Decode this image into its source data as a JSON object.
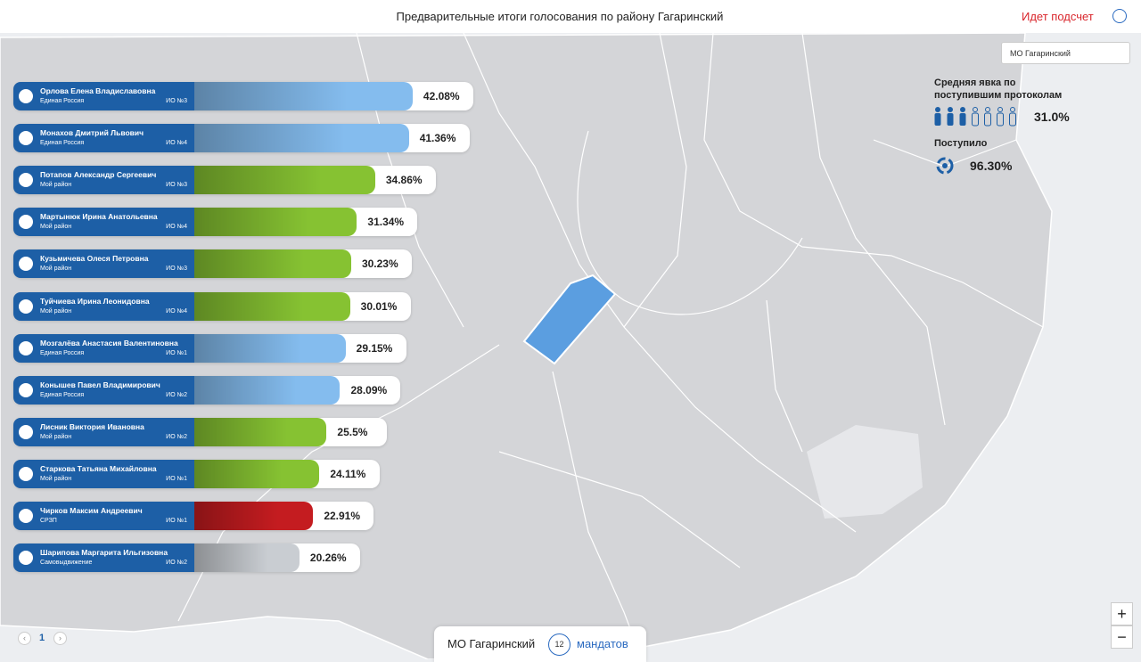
{
  "header": {
    "title": "Предварительные итоги голосования по району Гагаринский",
    "status": "Идет подсчет"
  },
  "candidates": [
    {
      "name": "Орлова Елена Владиславовна",
      "party": "Единая Россия",
      "district": "ИО №3",
      "percent": 42.08,
      "percent_label": "42.08%",
      "color": "#84bcee"
    },
    {
      "name": "Монахов Дмитрий Львович",
      "party": "Единая Россия",
      "district": "ИО №4",
      "percent": 41.36,
      "percent_label": "41.36%",
      "color": "#84bcee"
    },
    {
      "name": "Потапов Александр Сергеевич",
      "party": "Мой район",
      "district": "ИО №3",
      "percent": 34.86,
      "percent_label": "34.86%",
      "color": "#86c232"
    },
    {
      "name": "Мартынюк Ирина Анатольевна",
      "party": "Мой район",
      "district": "ИО №4",
      "percent": 31.34,
      "percent_label": "31.34%",
      "color": "#86c232"
    },
    {
      "name": "Кузьмичева Олеся Петровна",
      "party": "Мой район",
      "district": "ИО №3",
      "percent": 30.23,
      "percent_label": "30.23%",
      "color": "#86c232"
    },
    {
      "name": "Туйчиева Ирина Леонидовна",
      "party": "Мой район",
      "district": "ИО №4",
      "percent": 30.01,
      "percent_label": "30.01%",
      "color": "#86c232"
    },
    {
      "name": "Мозгалёва Анастасия Валентиновна",
      "party": "Единая Россия",
      "district": "ИО №1",
      "percent": 29.15,
      "percent_label": "29.15%",
      "color": "#84bcee"
    },
    {
      "name": "Конышев Павел Владимирович",
      "party": "Единая Россия",
      "district": "ИО №2",
      "percent": 28.09,
      "percent_label": "28.09%",
      "color": "#84bcee"
    },
    {
      "name": "Лисник Виктория Ивановна",
      "party": "Мой район",
      "district": "ИО №2",
      "percent": 25.5,
      "percent_label": "25.5%",
      "color": "#86c232"
    },
    {
      "name": "Старкова Татьяна Михайловна",
      "party": "Мой район",
      "district": "ИО №1",
      "percent": 24.11,
      "percent_label": "24.11%",
      "color": "#86c232"
    },
    {
      "name": "Чирков Максим Андреевич",
      "party": "СРЗП",
      "district": "ИО №1",
      "percent": 22.91,
      "percent_label": "22.91%",
      "color": "#c41c20"
    },
    {
      "name": "Шарипова Маргарита Ильгизовна",
      "party": "Самовыдвижение",
      "district": "ИО №2",
      "percent": 20.26,
      "percent_label": "20.26%",
      "color": "#c9cdd2"
    }
  ],
  "pagination": {
    "page": 1
  },
  "sidebar": {
    "district_select": "МО Гагаринский",
    "turnout_label": "Средняя явка по поступившим протоколам",
    "turnout_value": "31.0%",
    "received_label": "Поступило",
    "received_value": "96.30%"
  },
  "footer": {
    "district": "МО Гагаринский",
    "mandates": 12,
    "mandates_label": "мандатов"
  },
  "zoom": {
    "in": "+",
    "out": "−"
  }
}
